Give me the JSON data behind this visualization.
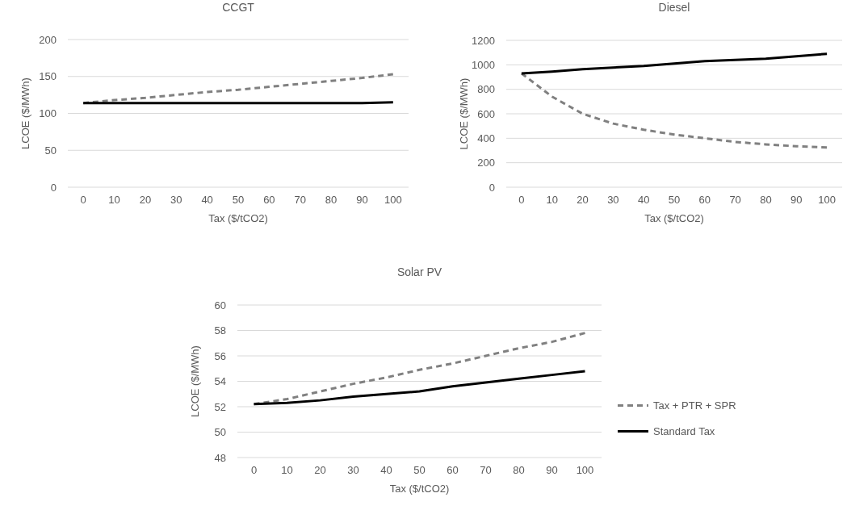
{
  "chart_data": [
    {
      "type": "line",
      "title": "CCGT",
      "xlabel": "Tax ($/tCO2)",
      "ylabel": "LCOE ($/MWh)",
      "categories": [
        "0",
        "10",
        "20",
        "30",
        "40",
        "50",
        "60",
        "70",
        "80",
        "90",
        "100"
      ],
      "ylim": [
        0,
        200
      ],
      "yticks": [
        0,
        50,
        100,
        150,
        200
      ],
      "grid": "y",
      "legend": false,
      "series": [
        {
          "color": "#808080",
          "line_style": "dashed",
          "values": [
            114,
            118,
            121,
            125,
            129,
            132,
            136,
            140,
            144,
            148,
            153
          ]
        },
        {
          "color": "#000000",
          "line_style": "solid",
          "values": [
            114,
            114,
            114,
            114,
            114,
            114,
            114,
            114,
            114,
            114,
            115
          ]
        }
      ]
    },
    {
      "type": "line",
      "title": "Diesel",
      "xlabel": "Tax ($/tCO2)",
      "ylabel": "LCOE ($/MWh)",
      "categories": [
        "0",
        "10",
        "20",
        "30",
        "40",
        "50",
        "60",
        "70",
        "80",
        "90",
        "100"
      ],
      "ylim": [
        0,
        1200
      ],
      "yticks": [
        0,
        200,
        400,
        600,
        800,
        1000,
        1200
      ],
      "grid": "y",
      "legend": false,
      "series": [
        {
          "color": "#808080",
          "line_style": "dashed",
          "values": [
            930,
            740,
            600,
            520,
            470,
            430,
            400,
            370,
            350,
            335,
            325
          ]
        },
        {
          "color": "#000000",
          "line_style": "solid",
          "values": [
            930,
            945,
            965,
            978,
            990,
            1010,
            1030,
            1040,
            1050,
            1070,
            1090
          ]
        }
      ]
    },
    {
      "type": "line",
      "title": "Solar  PV",
      "xlabel": "Tax ($/tCO2)",
      "ylabel": "LCOE ($/MWh)",
      "categories": [
        "0",
        "10",
        "20",
        "30",
        "40",
        "50",
        "60",
        "70",
        "80",
        "90",
        "100"
      ],
      "ylim": [
        48,
        60
      ],
      "yticks": [
        48,
        50,
        52,
        54,
        56,
        58,
        60
      ],
      "grid": "y",
      "legend": "right",
      "series": [
        {
          "name": "Tax + PTR + SPR",
          "color": "#808080",
          "line_style": "dashed",
          "values": [
            52.2,
            52.6,
            53.2,
            53.8,
            54.3,
            54.9,
            55.4,
            56.0,
            56.6,
            57.1,
            57.8
          ]
        },
        {
          "name": "Standard Tax",
          "color": "#000000",
          "line_style": "solid",
          "values": [
            52.2,
            52.3,
            52.5,
            52.8,
            53.0,
            53.2,
            53.6,
            53.9,
            54.2,
            54.5,
            54.8
          ]
        }
      ]
    }
  ]
}
